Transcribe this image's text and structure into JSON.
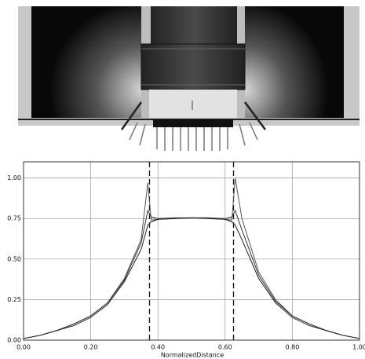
{
  "chart_data": {
    "type": "line",
    "x_label": "NormalizedDistance",
    "x": [
      0,
      0.05,
      0.1,
      0.15,
      0.2,
      0.25,
      0.3,
      0.35,
      0.37,
      0.38,
      0.4,
      0.45,
      0.5,
      0.55,
      0.6,
      0.62,
      0.63,
      0.65,
      0.7,
      0.75,
      0.8,
      0.85,
      0.9,
      0.95,
      1
    ],
    "series": [
      {
        "color": "#555555",
        "values": [
          0.01,
          0.03,
          0.06,
          0.1,
          0.15,
          0.23,
          0.38,
          0.62,
          0.97,
          0.74,
          0.745,
          0.75,
          0.755,
          0.75,
          0.745,
          0.74,
          1.0,
          0.75,
          0.42,
          0.25,
          0.15,
          0.1,
          0.06,
          0.03,
          0.01
        ]
      },
      {
        "color": "#333333",
        "values": [
          0.01,
          0.03,
          0.06,
          0.1,
          0.15,
          0.23,
          0.37,
          0.6,
          0.8,
          0.76,
          0.75,
          0.755,
          0.755,
          0.755,
          0.75,
          0.76,
          0.8,
          0.68,
          0.4,
          0.24,
          0.15,
          0.1,
          0.06,
          0.03,
          0.01
        ]
      },
      {
        "color": "#222222",
        "values": [
          0.01,
          0.03,
          0.06,
          0.09,
          0.14,
          0.22,
          0.36,
          0.56,
          0.71,
          0.73,
          0.745,
          0.75,
          0.755,
          0.75,
          0.745,
          0.73,
          0.71,
          0.62,
          0.38,
          0.23,
          0.14,
          0.09,
          0.06,
          0.03,
          0.01
        ]
      }
    ],
    "xlim": [
      0,
      1
    ],
    "ylim": [
      0,
      1.1
    ],
    "xticks": [
      {
        "value": 0,
        "label": "0.00"
      },
      {
        "value": 0.2,
        "label": "0.20"
      },
      {
        "value": 0.4,
        "label": "0.40"
      },
      {
        "value": 0.6,
        "label": "0.60"
      },
      {
        "value": 0.8,
        "label": "0.80"
      },
      {
        "value": 1,
        "label": "1.00"
      }
    ],
    "yticks": [
      {
        "value": 0,
        "label": "0.00"
      },
      {
        "value": 0.25,
        "label": "0.25"
      },
      {
        "value": 0.5,
        "label": "0.50"
      },
      {
        "value": 0.75,
        "label": "0.75"
      },
      {
        "value": 1,
        "label": "1.00"
      }
    ],
    "vlines": [
      0.375,
      0.625
    ],
    "grid": true
  }
}
